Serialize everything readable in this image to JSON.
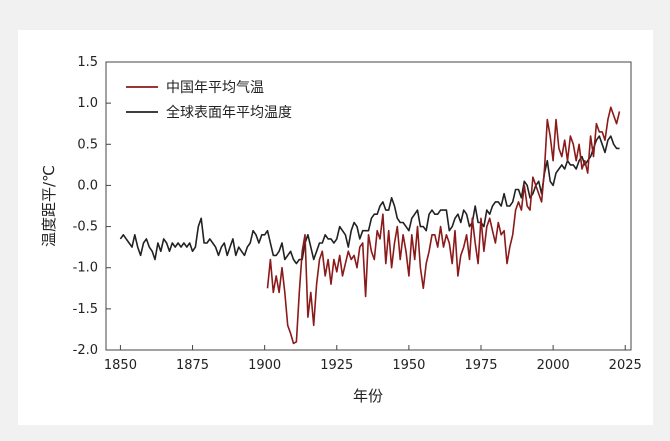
{
  "chart_data": {
    "type": "line",
    "xlabel": "年份",
    "ylabel": "温度距平/℃",
    "xlim": [
      1845,
      2027
    ],
    "ylim": [
      -2.0,
      1.5
    ],
    "xticks": [
      "1850",
      "1875",
      "1900",
      "1925",
      "1950",
      "1975",
      "2000",
      "2025"
    ],
    "yticks": [
      "-2.0",
      "-1.5",
      "-1.0",
      "-0.5",
      "0.0",
      "0.5",
      "1.0",
      "1.5"
    ],
    "grid": false,
    "legend_position": "top-left",
    "series": [
      {
        "name": "中国年平均气温",
        "color": "#8b1a1a",
        "x": [
          1901,
          1902,
          1903,
          1904,
          1905,
          1906,
          1907,
          1908,
          1909,
          1910,
          1911,
          1912,
          1913,
          1914,
          1915,
          1916,
          1917,
          1918,
          1919,
          1920,
          1921,
          1922,
          1923,
          1924,
          1925,
          1926,
          1927,
          1928,
          1929,
          1930,
          1931,
          1932,
          1933,
          1934,
          1935,
          1936,
          1937,
          1938,
          1939,
          1940,
          1941,
          1942,
          1943,
          1944,
          1945,
          1946,
          1947,
          1948,
          1949,
          1950,
          1951,
          1952,
          1953,
          1954,
          1955,
          1956,
          1957,
          1958,
          1959,
          1960,
          1961,
          1962,
          1963,
          1964,
          1965,
          1966,
          1967,
          1968,
          1969,
          1970,
          1971,
          1972,
          1973,
          1974,
          1975,
          1976,
          1977,
          1978,
          1979,
          1980,
          1981,
          1982,
          1983,
          1984,
          1985,
          1986,
          1987,
          1988,
          1989,
          1990,
          1991,
          1992,
          1993,
          1994,
          1995,
          1996,
          1997,
          1998,
          1999,
          2000,
          2001,
          2002,
          2003,
          2004,
          2005,
          2006,
          2007,
          2008,
          2009,
          2010,
          2011,
          2012,
          2013,
          2014,
          2015,
          2016,
          2017,
          2018,
          2019,
          2020,
          2021,
          2022,
          2023
        ],
        "values": [
          -1.25,
          -0.9,
          -1.3,
          -1.1,
          -1.3,
          -1.0,
          -1.3,
          -1.7,
          -1.8,
          -1.92,
          -1.9,
          -1.3,
          -0.8,
          -0.6,
          -1.6,
          -1.3,
          -1.7,
          -1.2,
          -0.9,
          -0.8,
          -1.1,
          -0.9,
          -1.2,
          -0.9,
          -1.05,
          -0.85,
          -1.1,
          -0.95,
          -0.8,
          -0.9,
          -0.85,
          -1.0,
          -0.75,
          -0.7,
          -1.35,
          -0.6,
          -0.8,
          -0.9,
          -0.55,
          -0.65,
          -0.35,
          -0.95,
          -0.55,
          -1.0,
          -0.7,
          -0.5,
          -0.9,
          -0.6,
          -0.8,
          -1.1,
          -0.6,
          -0.9,
          -0.5,
          -1.0,
          -1.25,
          -0.95,
          -0.8,
          -0.6,
          -0.6,
          -0.75,
          -0.5,
          -0.75,
          -0.6,
          -0.7,
          -0.95,
          -0.55,
          -1.1,
          -0.85,
          -0.75,
          -0.6,
          -0.9,
          -0.4,
          -0.7,
          -0.95,
          -0.4,
          -0.8,
          -0.5,
          -0.4,
          -0.55,
          -0.7,
          -0.45,
          -0.6,
          -0.55,
          -0.95,
          -0.75,
          -0.6,
          -0.3,
          -0.2,
          -0.3,
          0.0,
          -0.25,
          -0.3,
          0.1,
          0.0,
          -0.1,
          -0.2,
          0.2,
          0.8,
          0.6,
          0.3,
          0.8,
          0.45,
          0.35,
          0.55,
          0.3,
          0.6,
          0.5,
          0.3,
          0.5,
          0.2,
          0.3,
          0.15,
          0.6,
          0.35,
          0.75,
          0.65,
          0.65,
          0.55,
          0.8,
          0.95,
          0.85,
          0.75,
          0.9
        ],
        "note_values_are_annual_anomalies": ""
      },
      {
        "name": "全球表面年平均温度",
        "color": "#222222",
        "x": [
          1850,
          1851,
          1852,
          1853,
          1854,
          1855,
          1856,
          1857,
          1858,
          1859,
          1860,
          1861,
          1862,
          1863,
          1864,
          1865,
          1866,
          1867,
          1868,
          1869,
          1870,
          1871,
          1872,
          1873,
          1874,
          1875,
          1876,
          1877,
          1878,
          1879,
          1880,
          1881,
          1882,
          1883,
          1884,
          1885,
          1886,
          1887,
          1888,
          1889,
          1890,
          1891,
          1892,
          1893,
          1894,
          1895,
          1896,
          1897,
          1898,
          1899,
          1900,
          1901,
          1902,
          1903,
          1904,
          1905,
          1906,
          1907,
          1908,
          1909,
          1910,
          1911,
          1912,
          1913,
          1914,
          1915,
          1916,
          1917,
          1918,
          1919,
          1920,
          1921,
          1922,
          1923,
          1924,
          1925,
          1926,
          1927,
          1928,
          1929,
          1930,
          1931,
          1932,
          1933,
          1934,
          1935,
          1936,
          1937,
          1938,
          1939,
          1940,
          1941,
          1942,
          1943,
          1944,
          1945,
          1946,
          1947,
          1948,
          1949,
          1950,
          1951,
          1952,
          1953,
          1954,
          1955,
          1956,
          1957,
          1958,
          1959,
          1960,
          1961,
          1962,
          1963,
          1964,
          1965,
          1966,
          1967,
          1968,
          1969,
          1970,
          1971,
          1972,
          1973,
          1974,
          1975,
          1976,
          1977,
          1978,
          1979,
          1980,
          1981,
          1982,
          1983,
          1984,
          1985,
          1986,
          1987,
          1988,
          1989,
          1990,
          1991,
          1992,
          1993,
          1994,
          1995,
          1996,
          1997,
          1998,
          1999,
          2000,
          2001,
          2002,
          2003,
          2004,
          2005,
          2006,
          2007,
          2008,
          2009,
          2010,
          2011,
          2012,
          2013,
          2014,
          2015,
          2016,
          2017,
          2018,
          2019,
          2020,
          2021,
          2022,
          2023
        ],
        "values": [
          -0.65,
          -0.6,
          -0.65,
          -0.7,
          -0.75,
          -0.6,
          -0.75,
          -0.85,
          -0.7,
          -0.65,
          -0.75,
          -0.8,
          -0.9,
          -0.7,
          -0.8,
          -0.65,
          -0.7,
          -0.8,
          -0.7,
          -0.75,
          -0.7,
          -0.75,
          -0.7,
          -0.75,
          -0.7,
          -0.8,
          -0.75,
          -0.5,
          -0.4,
          -0.7,
          -0.7,
          -0.65,
          -0.7,
          -0.75,
          -0.85,
          -0.75,
          -0.7,
          -0.85,
          -0.75,
          -0.65,
          -0.85,
          -0.75,
          -0.8,
          -0.85,
          -0.75,
          -0.7,
          -0.55,
          -0.6,
          -0.7,
          -0.6,
          -0.6,
          -0.55,
          -0.7,
          -0.85,
          -0.85,
          -0.8,
          -0.7,
          -0.9,
          -0.85,
          -0.8,
          -0.9,
          -0.95,
          -0.9,
          -0.9,
          -0.7,
          -0.6,
          -0.75,
          -0.9,
          -0.8,
          -0.7,
          -0.7,
          -0.6,
          -0.65,
          -0.65,
          -0.7,
          -0.65,
          -0.5,
          -0.55,
          -0.6,
          -0.75,
          -0.55,
          -0.45,
          -0.5,
          -0.65,
          -0.55,
          -0.55,
          -0.55,
          -0.4,
          -0.35,
          -0.35,
          -0.25,
          -0.2,
          -0.3,
          -0.3,
          -0.15,
          -0.25,
          -0.4,
          -0.45,
          -0.45,
          -0.5,
          -0.55,
          -0.4,
          -0.35,
          -0.3,
          -0.5,
          -0.5,
          -0.55,
          -0.35,
          -0.3,
          -0.35,
          -0.35,
          -0.3,
          -0.3,
          -0.3,
          -0.55,
          -0.5,
          -0.4,
          -0.35,
          -0.45,
          -0.3,
          -0.35,
          -0.5,
          -0.45,
          -0.25,
          -0.45,
          -0.45,
          -0.5,
          -0.3,
          -0.35,
          -0.25,
          -0.2,
          -0.2,
          -0.25,
          -0.1,
          -0.25,
          -0.25,
          -0.2,
          -0.05,
          -0.05,
          -0.15,
          0.05,
          0.0,
          -0.15,
          -0.1,
          0.0,
          0.05,
          -0.1,
          0.15,
          0.3,
          0.05,
          0.0,
          0.15,
          0.2,
          0.25,
          0.2,
          0.3,
          0.25,
          0.25,
          0.2,
          0.3,
          0.35,
          0.25,
          0.3,
          0.35,
          0.45,
          0.55,
          0.6,
          0.5,
          0.4,
          0.55,
          0.6,
          0.5,
          0.45,
          0.45
        ]
      }
    ]
  }
}
